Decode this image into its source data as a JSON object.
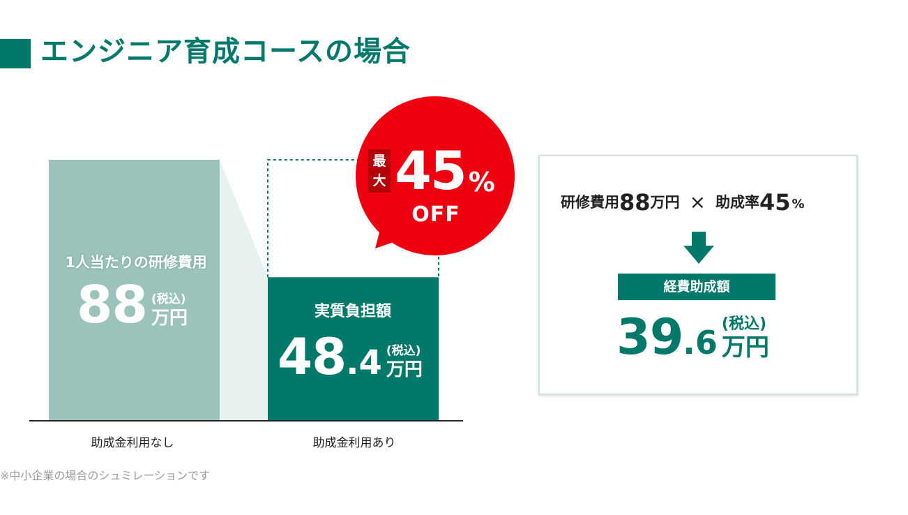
{
  "title": "エンジニア育成コースの場合",
  "chart_data": {
    "type": "bar",
    "categories": [
      "助成金利用なし",
      "助成金利用あり"
    ],
    "values": [
      88,
      48.4
    ],
    "unit": "万円",
    "bars": [
      {
        "label": "1人当たりの研修費用",
        "value_int": "88",
        "value_dec": "",
        "tax": "(税込)",
        "unit": "万円"
      },
      {
        "label": "実質負担額",
        "value_int": "48",
        "value_dec": ".4",
        "tax": "(税込)",
        "unit": "万円"
      }
    ],
    "ylim": [
      0,
      88
    ],
    "grid": false
  },
  "badge": {
    "max_line1": "最",
    "max_line2": "大",
    "percent_number": "45",
    "percent_sign": "%",
    "off": "OFF"
  },
  "calc": {
    "cost_label": "研修費用",
    "cost_value": "88",
    "cost_unit": "万円",
    "times": "×",
    "rate_label": "助成率",
    "rate_value": "45",
    "rate_unit": "%",
    "result_label": "経費助成額",
    "result_int": "39",
    "result_dec": ".6",
    "result_tax": "(税込)",
    "result_unit": "万円"
  },
  "note": "※中小企業の場合のシュミレーションです",
  "colors": {
    "accent": "#00796b",
    "bar_light": "#9bc3bb",
    "connector": "#e7f1ef",
    "badge_red": "#ee0011",
    "badge_dark": "#b4000b"
  }
}
